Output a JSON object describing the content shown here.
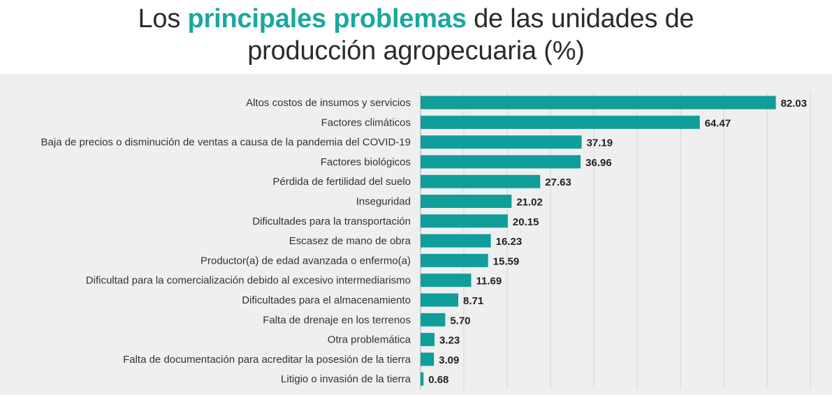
{
  "title": {
    "pre": "Los",
    "highlight": "principales problemas",
    "post": "de las unidades de",
    "line2": "producción agropecuaria (%)"
  },
  "colors": {
    "bar": "#0f9e9a",
    "highlight": "#1aa7a0"
  },
  "chart_data": {
    "type": "bar",
    "orientation": "horizontal",
    "title": "Los principales problemas de las unidades de producción agropecuaria (%)",
    "xlabel": "",
    "ylabel": "",
    "xlim": [
      0,
      90
    ],
    "grid": true,
    "categories": [
      "Altos costos de insumos y servicios",
      "Factores climáticos",
      "Baja de precios o disminución de ventas a causa de la pandemia del COVID-19",
      "Factores biológicos",
      "Pérdida de fertilidad del suelo",
      "Inseguridad",
      "Dificultades para la transportación",
      "Escasez de mano de obra",
      "Productor(a) de edad avanzada o enfermo(a)",
      "Dificultad para la comercialización debido al excesivo intermediarismo",
      "Dificultades para el almacenamiento",
      "Falta de drenaje en los terrenos",
      "Otra problemática",
      "Falta de documentación para acreditar la posesión de la tierra",
      "Litigio o invasión de la tierra"
    ],
    "values": [
      82.03,
      64.47,
      37.19,
      36.96,
      27.63,
      21.02,
      20.15,
      16.23,
      15.59,
      11.69,
      8.71,
      5.7,
      3.23,
      3.09,
      0.68
    ],
    "value_labels": [
      "82.03",
      "64.47",
      "37.19",
      "36.96",
      "27.63",
      "21.02",
      "20.15",
      "16.23",
      "15.59",
      "11.69",
      "8.71",
      "5.70",
      "3.23",
      "3.09",
      "0.68"
    ]
  }
}
